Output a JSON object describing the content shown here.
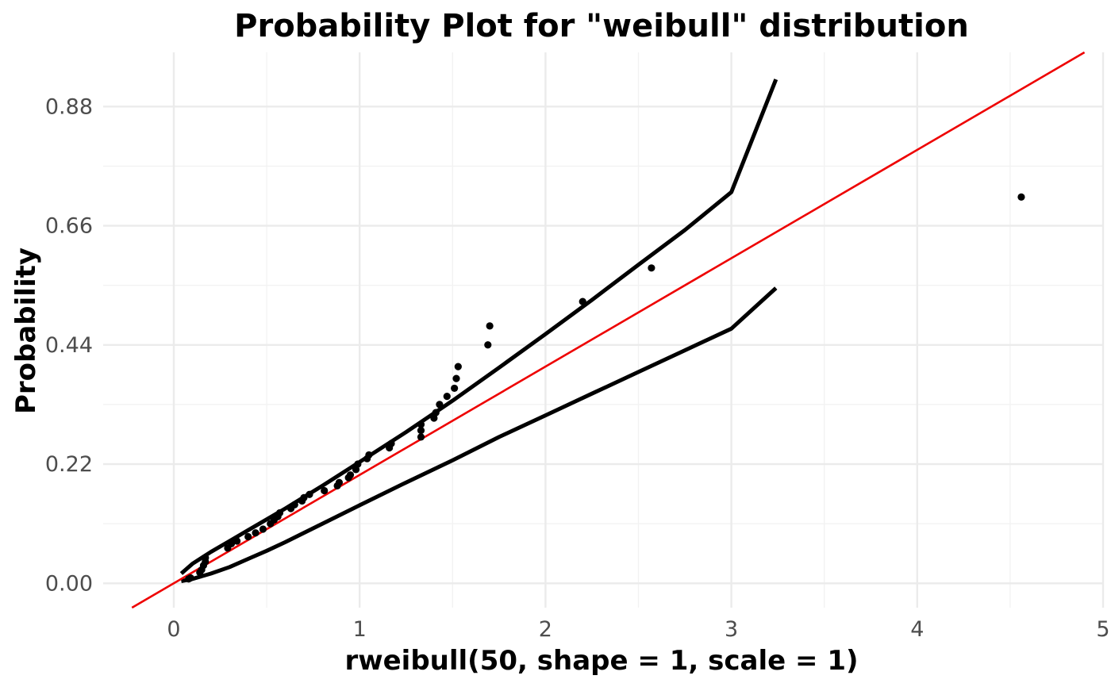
{
  "chart_data": {
    "type": "scatter",
    "title": "Probability Plot for \"weibull\" distribution",
    "xlabel": "rweibull(50, shape = 1, scale = 1)",
    "ylabel": "Probability",
    "xlim": [
      -0.38,
      5.0
    ],
    "ylim": [
      -0.045,
      0.98
    ],
    "x_ticks": [
      0,
      1,
      2,
      3,
      4,
      5
    ],
    "x_tick_labels": [
      "0",
      "1",
      "2",
      "3",
      "4",
      "5"
    ],
    "y_ticks": [
      0.0,
      0.22,
      0.44,
      0.66,
      0.88
    ],
    "y_tick_labels": [
      "0.00",
      "0.22",
      "0.44",
      "0.66",
      "0.88"
    ],
    "grid": true,
    "points": {
      "x": [
        0.08,
        0.09,
        0.14,
        0.15,
        0.16,
        0.17,
        0.17,
        0.29,
        0.31,
        0.34,
        0.4,
        0.44,
        0.48,
        0.52,
        0.54,
        0.56,
        0.57,
        0.63,
        0.65,
        0.69,
        0.7,
        0.73,
        0.81,
        0.88,
        0.89,
        0.94,
        0.95,
        0.98,
        0.99,
        1.04,
        1.05,
        1.16,
        1.17,
        1.33,
        1.33,
        1.33,
        1.4,
        1.41,
        1.43,
        1.47,
        1.51,
        1.52,
        1.53,
        1.69,
        1.7,
        2.2,
        2.57,
        4.56
      ],
      "y": [
        0.008,
        0.01,
        0.02,
        0.025,
        0.033,
        0.04,
        0.047,
        0.065,
        0.073,
        0.078,
        0.086,
        0.093,
        0.1,
        0.11,
        0.117,
        0.123,
        0.13,
        0.138,
        0.145,
        0.152,
        0.158,
        0.164,
        0.171,
        0.18,
        0.186,
        0.195,
        0.2,
        0.21,
        0.22,
        0.23,
        0.237,
        0.25,
        0.258,
        0.27,
        0.282,
        0.293,
        0.305,
        0.315,
        0.33,
        0.345,
        0.36,
        0.378,
        0.4,
        0.44,
        0.475,
        0.52,
        0.582,
        0.713
      ],
      "color": "#000000"
    },
    "reference_line": {
      "intercept": 0.0,
      "slope": 0.2,
      "color": "#ee0000"
    },
    "confidence_bands": [
      {
        "x": [
          0.04,
          0.1,
          0.2,
          0.3,
          0.4,
          0.5,
          0.6,
          0.8,
          1.0,
          1.25,
          1.5,
          1.75,
          2.0,
          2.25,
          2.5,
          2.75,
          3.0,
          3.24
        ],
        "y": [
          0.018,
          0.036,
          0.058,
          0.078,
          0.098,
          0.118,
          0.138,
          0.18,
          0.224,
          0.279,
          0.337,
          0.398,
          0.46,
          0.523,
          0.588,
          0.652,
          0.722,
          0.93
        ]
      },
      {
        "x": [
          0.04,
          0.1,
          0.2,
          0.3,
          0.4,
          0.5,
          0.6,
          0.8,
          1.0,
          1.25,
          1.5,
          1.75,
          2.0,
          2.25,
          2.5,
          2.75,
          3.0,
          3.24
        ],
        "y": [
          0.004,
          0.008,
          0.018,
          0.03,
          0.045,
          0.06,
          0.076,
          0.11,
          0.144,
          0.186,
          0.227,
          0.27,
          0.31,
          0.35,
          0.39,
          0.43,
          0.47,
          0.545
        ]
      }
    ],
    "band_color": "#000000"
  }
}
